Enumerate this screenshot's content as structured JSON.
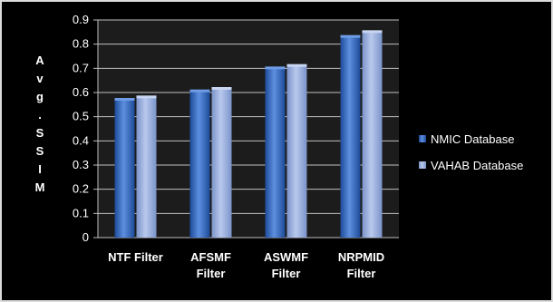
{
  "chart_data": {
    "type": "bar",
    "categories": [
      "NTF Filter",
      "AFSMF Filter",
      "ASWMF Filter",
      "NRPMID Filter"
    ],
    "series": [
      {
        "name": "NMIC Database",
        "values": [
          0.57,
          0.605,
          0.7,
          0.83
        ],
        "color": "#2e63b8"
      },
      {
        "name": "VAHAB Database",
        "values": [
          0.58,
          0.615,
          0.71,
          0.85
        ],
        "color": "#8fa8dc"
      }
    ],
    "ylabel": "Avg.SSIM",
    "ylim": [
      0,
      0.9
    ],
    "yticks": [
      "0",
      "0.1",
      "0.2",
      "0.3",
      "0.4",
      "0.5",
      "0.6",
      "0.7",
      "0.8",
      "0.9"
    ],
    "grid": true,
    "legend": "right",
    "background": "#000000",
    "plot_background": "#1c1c1c",
    "grid_color": "#bfbfbf"
  }
}
